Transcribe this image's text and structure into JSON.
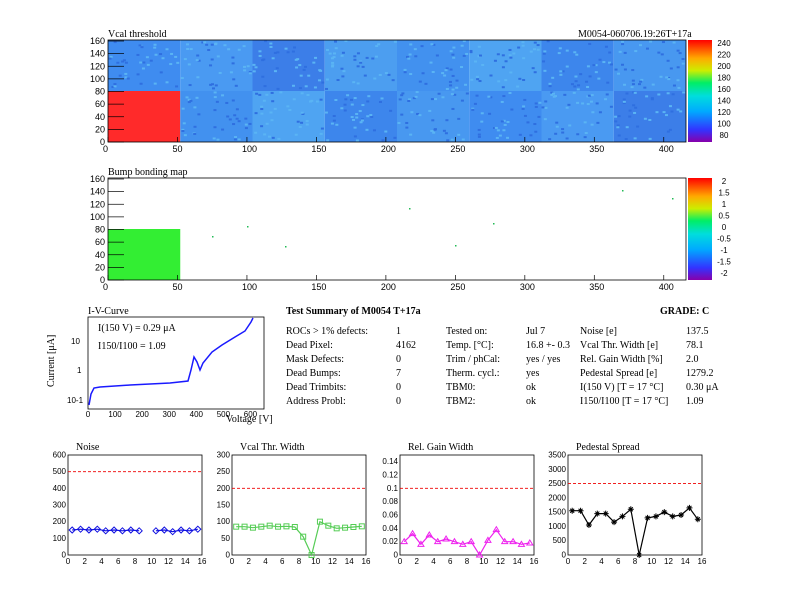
{
  "header": {
    "title": "Vcal threshold",
    "module_id": "M0054-060706.19:26T+17a"
  },
  "threshold_map": {
    "title": "Vcal threshold",
    "x_ticks": [
      "0",
      "50",
      "100",
      "150",
      "200",
      "250",
      "300",
      "350",
      "400"
    ],
    "y_ticks": [
      "0",
      "20",
      "40",
      "60",
      "80",
      "100",
      "120",
      "140",
      "160"
    ],
    "colorbar_labels": [
      "240",
      "220",
      "200",
      "180",
      "160",
      "140",
      "120",
      "100",
      "80"
    ],
    "dead_roc_color": "#ff2a2a"
  },
  "bump_map": {
    "title": "Bump bonding map",
    "x_ticks": [
      "0",
      "50",
      "100",
      "150",
      "200",
      "250",
      "300",
      "350",
      "400"
    ],
    "y_ticks": [
      "0",
      "20",
      "40",
      "60",
      "80",
      "100",
      "120",
      "140",
      "160"
    ],
    "colorbar_labels": [
      "2",
      "1.5",
      "1",
      "0.5",
      "0",
      "-0.5",
      "-1",
      "-1.5",
      "-2"
    ],
    "dead_roc_color": "#33ee33"
  },
  "iv_curve": {
    "title": "I-V-Curve",
    "ylabel": "Current [μA]",
    "xlabel": "Voltage [V]",
    "annotation_current": "I(150 V) = 0.29 μA",
    "annotation_ratio": "I150/I100 = 1.09",
    "x_ticks": [
      "0",
      "100",
      "200",
      "300",
      "400",
      "500",
      "600"
    ],
    "y_ticks": [
      "10",
      "1",
      "10-1"
    ]
  },
  "summary": {
    "title": "Test Summary of M0054    T+17a",
    "grade": "GRADE:  C",
    "col1": [
      {
        "label": "ROCs > 1% defects:",
        "value": "1"
      },
      {
        "label": "Dead Pixel:",
        "value": "4162"
      },
      {
        "label": "Mask Defects:",
        "value": "0"
      },
      {
        "label": "Dead Bumps:",
        "value": "7"
      },
      {
        "label": "Dead Trimbits:",
        "value": "0"
      },
      {
        "label": "Address Probl:",
        "value": "0"
      }
    ],
    "col2": [
      {
        "label": "Tested on:",
        "value": "Jul 7"
      },
      {
        "label": "Temp. [°C]:",
        "value": "16.8 +- 0.3"
      },
      {
        "label": "Trim / phCal:",
        "value": "yes / yes"
      },
      {
        "label": "Therm. cycl.:",
        "value": "yes"
      },
      {
        "label": "TBM0:",
        "value": "ok"
      },
      {
        "label": "TBM2:",
        "value": "ok"
      }
    ],
    "col3": [
      {
        "label": "Noise [e]",
        "value": "137.5"
      },
      {
        "label": "Vcal Thr. Width [e]",
        "value": "78.1"
      },
      {
        "label": "Rel. Gain Width [%]",
        "value": "2.0"
      },
      {
        "label": "Pedestal Spread [e]",
        "value": "1279.2"
      },
      {
        "label": "I(150 V) [T = 17 °C]",
        "value": "0.30 μA"
      },
      {
        "label": "I150/I100   [T = 17 °C]",
        "value": "1.09"
      }
    ]
  },
  "chart_data": [
    {
      "type": "line",
      "title": "Noise",
      "color": "#1010e0",
      "marker": "diamond",
      "x": [
        0,
        1,
        2,
        3,
        4,
        5,
        6,
        7,
        8,
        9,
        10,
        11,
        12,
        13,
        14,
        15
      ],
      "values": [
        150,
        155,
        150,
        155,
        145,
        150,
        145,
        150,
        145,
        null,
        145,
        150,
        140,
        150,
        145,
        155
      ],
      "xlim": [
        0,
        16
      ],
      "ylim": [
        0,
        600
      ],
      "threshold": 500,
      "x_ticks": [
        "0",
        "2",
        "4",
        "6",
        "8",
        "10",
        "12",
        "14",
        "16"
      ],
      "y_ticks": [
        "0",
        "100",
        "200",
        "300",
        "400",
        "500",
        "600"
      ]
    },
    {
      "type": "line",
      "title": "Vcal Thr. Width",
      "color": "#55cc55",
      "marker": "square",
      "x": [
        0,
        1,
        2,
        3,
        4,
        5,
        6,
        7,
        8,
        9,
        10,
        11,
        12,
        13,
        14,
        15
      ],
      "values": [
        85,
        85,
        82,
        85,
        88,
        85,
        86,
        84,
        55,
        0,
        100,
        88,
        80,
        82,
        84,
        86
      ],
      "xlim": [
        0,
        16
      ],
      "ylim": [
        0,
        300
      ],
      "threshold": 200,
      "x_ticks": [
        "0",
        "2",
        "4",
        "6",
        "8",
        "10",
        "12",
        "14",
        "16"
      ],
      "y_ticks": [
        "0",
        "50",
        "100",
        "150",
        "200",
        "250",
        "300"
      ]
    },
    {
      "type": "line",
      "title": "Rel. Gain Width",
      "color": "#ee22ee",
      "marker": "triangle",
      "x": [
        0,
        1,
        2,
        3,
        4,
        5,
        6,
        7,
        8,
        9,
        10,
        11,
        12,
        13,
        14,
        15
      ],
      "values": [
        0.02,
        0.032,
        0.016,
        0.03,
        0.02,
        0.024,
        0.02,
        0.016,
        0.02,
        0.0,
        0.022,
        0.038,
        0.02,
        0.02,
        0.016,
        0.018
      ],
      "xlim": [
        0,
        16
      ],
      "ylim": [
        0,
        0.15
      ],
      "threshold": 0.1,
      "x_ticks": [
        "0",
        "2",
        "4",
        "6",
        "8",
        "10",
        "12",
        "14",
        "16"
      ],
      "y_ticks": [
        "0",
        "0.02",
        "0.04",
        "0.06",
        "0.08",
        "0.1",
        "0.12",
        "0.14"
      ]
    },
    {
      "type": "line",
      "title": "Pedestal Spread",
      "color": "#000000",
      "marker": "star",
      "x": [
        0,
        1,
        2,
        3,
        4,
        5,
        6,
        7,
        8,
        9,
        10,
        11,
        12,
        13,
        14,
        15
      ],
      "values": [
        1550,
        1550,
        1050,
        1450,
        1450,
        1150,
        1350,
        1600,
        0,
        1300,
        1350,
        1500,
        1350,
        1400,
        1650,
        1250
      ],
      "xlim": [
        0,
        16
      ],
      "ylim": [
        0,
        3500
      ],
      "threshold": 2500,
      "x_ticks": [
        "0",
        "2",
        "4",
        "6",
        "8",
        "10",
        "12",
        "14",
        "16"
      ],
      "y_ticks": [
        "0",
        "500",
        "1000",
        "1500",
        "2000",
        "2500",
        "3000",
        "3500"
      ]
    }
  ]
}
